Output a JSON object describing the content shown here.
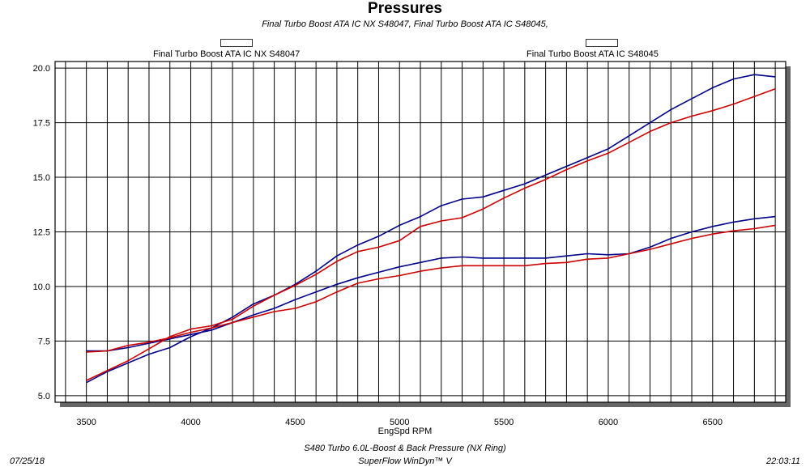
{
  "chart_data": {
    "type": "line",
    "title": "Pressures",
    "subtitle": "Final Turbo Boost ATA IC NX S48047, Final Turbo Boost ATA IC S48045,",
    "xlabel": "EngSpd RPM",
    "ylabel": "",
    "xlim": [
      3350,
      6850
    ],
    "ylim": [
      4.7,
      20.3
    ],
    "x_ticks": [
      3500,
      4000,
      4500,
      5000,
      5500,
      6000,
      6500
    ],
    "y_ticks": [
      5.0,
      7.5,
      10.0,
      12.5,
      15.0,
      17.5,
      20.0
    ],
    "grid": true,
    "legend": [
      {
        "label": "Final Turbo Boost ATA IC NX S48047",
        "color": "#0000cc",
        "position": "top-left"
      },
      {
        "label": "Final Turbo Boost ATA IC S48045",
        "color": "#cc0000",
        "position": "top-right"
      }
    ],
    "series": [
      {
        "name": "Final Turbo Boost ATA IC NX S48047",
        "color": "#00008b",
        "x": [
          3500,
          3600,
          3700,
          3800,
          3900,
          4000,
          4100,
          4200,
          4300,
          4400,
          4500,
          4600,
          4700,
          4800,
          4900,
          5000,
          5100,
          5200,
          5300,
          5400,
          5500,
          5600,
          5700,
          5800,
          5900,
          6000,
          6100,
          6200,
          6300,
          6400,
          6500,
          6600,
          6700,
          6800
        ],
        "values": [
          5.6,
          6.1,
          6.5,
          6.9,
          7.2,
          7.7,
          8.1,
          8.6,
          9.2,
          9.6,
          10.1,
          10.7,
          11.4,
          11.9,
          12.3,
          12.8,
          13.2,
          13.7,
          14.0,
          14.1,
          14.4,
          14.7,
          15.1,
          15.5,
          15.9,
          16.3,
          16.9,
          17.5,
          18.1,
          18.6,
          19.1,
          19.5,
          19.7,
          19.6
        ]
      },
      {
        "name": "Final Turbo Boost ATA IC NX S48047",
        "color": "#00008b",
        "x": [
          3500,
          3600,
          3700,
          3800,
          3900,
          4000,
          4100,
          4200,
          4300,
          4400,
          4500,
          4600,
          4700,
          4800,
          4900,
          5000,
          5100,
          5200,
          5300,
          5400,
          5500,
          5600,
          5700,
          5800,
          5900,
          6000,
          6100,
          6200,
          6300,
          6400,
          6500,
          6600,
          6700,
          6800
        ],
        "values": [
          7.05,
          7.05,
          7.2,
          7.4,
          7.6,
          7.8,
          8.0,
          8.35,
          8.7,
          9.0,
          9.4,
          9.75,
          10.1,
          10.4,
          10.65,
          10.9,
          11.1,
          11.3,
          11.35,
          11.3,
          11.3,
          11.3,
          11.3,
          11.4,
          11.5,
          11.45,
          11.5,
          11.8,
          12.2,
          12.5,
          12.75,
          12.95,
          13.1,
          13.2
        ]
      },
      {
        "name": "Final Turbo Boost ATA IC S48045",
        "color": "#cc0000",
        "x": [
          3500,
          3600,
          3700,
          3800,
          3900,
          4000,
          4100,
          4200,
          4300,
          4400,
          4500,
          4600,
          4700,
          4800,
          4900,
          5000,
          5100,
          5200,
          5300,
          5400,
          5500,
          5600,
          5700,
          5800,
          5900,
          6000,
          6100,
          6200,
          6300,
          6400,
          6500,
          6600,
          6700,
          6800
        ],
        "values": [
          5.7,
          6.15,
          6.6,
          7.15,
          7.7,
          8.05,
          8.2,
          8.5,
          9.1,
          9.6,
          10.05,
          10.55,
          11.15,
          11.6,
          11.8,
          12.1,
          12.75,
          13.0,
          13.15,
          13.55,
          14.05,
          14.5,
          14.9,
          15.35,
          15.75,
          16.1,
          16.6,
          17.1,
          17.5,
          17.8,
          18.05,
          18.35,
          18.7,
          19.05
        ]
      },
      {
        "name": "Final Turbo Boost ATA IC S48045",
        "color": "#cc0000",
        "x": [
          3500,
          3600,
          3700,
          3800,
          3900,
          4000,
          4100,
          4200,
          4300,
          4400,
          4500,
          4600,
          4700,
          4800,
          4900,
          5000,
          5100,
          5200,
          5300,
          5400,
          5500,
          5600,
          5700,
          5800,
          5900,
          6000,
          6100,
          6200,
          6300,
          6400,
          6500,
          6600,
          6700,
          6800
        ],
        "values": [
          7.0,
          7.05,
          7.3,
          7.45,
          7.65,
          7.9,
          8.1,
          8.35,
          8.6,
          8.85,
          9.0,
          9.3,
          9.75,
          10.15,
          10.35,
          10.5,
          10.7,
          10.85,
          10.95,
          10.95,
          10.95,
          10.95,
          11.05,
          11.1,
          11.25,
          11.3,
          11.5,
          11.7,
          11.95,
          12.2,
          12.4,
          12.55,
          12.65,
          12.8
        ]
      }
    ]
  },
  "footer": {
    "date": "07/25/18",
    "description": "S480 Turbo 6.0L-Boost & Back Pressure (NX Ring)",
    "software": "SuperFlow WinDyn™ V",
    "time": "22:03:11"
  }
}
